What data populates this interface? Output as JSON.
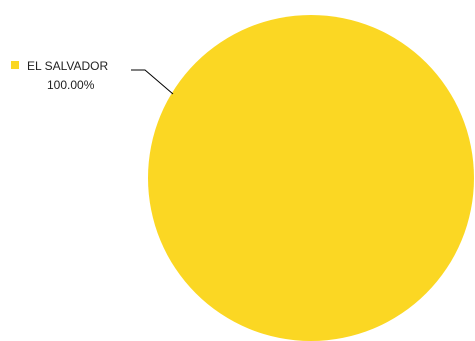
{
  "chart_data": {
    "type": "pie",
    "title": "",
    "categories": [
      "EL SALVADOR"
    ],
    "values": [
      100.0
    ],
    "value_labels": [
      "100.00%"
    ],
    "colors": [
      "#FBD723"
    ],
    "legend": "none",
    "label_placement": "outside-left"
  }
}
